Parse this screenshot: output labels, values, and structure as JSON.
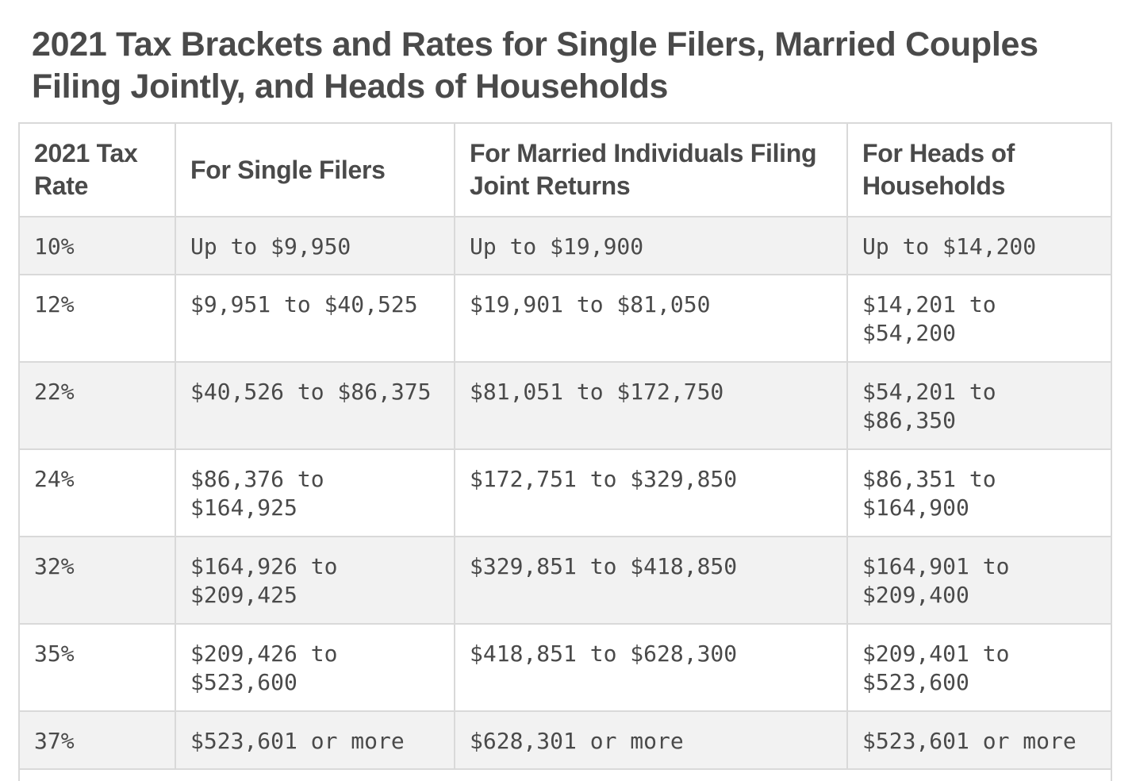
{
  "title": "2021 Tax Brackets and Rates for Single Filers, Married Couples Filing Jointly, and Heads of Households",
  "table": {
    "headers": [
      "2021 Tax Rate",
      "For Single Filers",
      "For Married Individuals Filing Joint Returns",
      "For Heads of Households"
    ],
    "rows": [
      [
        "10%",
        "Up to $9,950",
        "Up to $19,900",
        "Up to $14,200"
      ],
      [
        "12%",
        "$9,951 to $40,525",
        "$19,901 to $81,050",
        "$14,201 to $54,200"
      ],
      [
        "22%",
        "$40,526 to $86,375",
        "$81,051 to $172,750",
        "$54,201 to $86,350"
      ],
      [
        "24%",
        "$86,376 to $164,925",
        "$172,751 to $329,850",
        "$86,351 to $164,900"
      ],
      [
        "32%",
        "$164,926 to $209,425",
        "$329,851 to $418,850",
        "$164,901 to $209,400"
      ],
      [
        "35%",
        "$209,426 to $523,600",
        "$418,851 to $628,300",
        "$209,401 to $523,600"
      ],
      [
        "37%",
        "$523,601 or more",
        "$628,301 or more",
        "$523,601 or more"
      ]
    ]
  }
}
